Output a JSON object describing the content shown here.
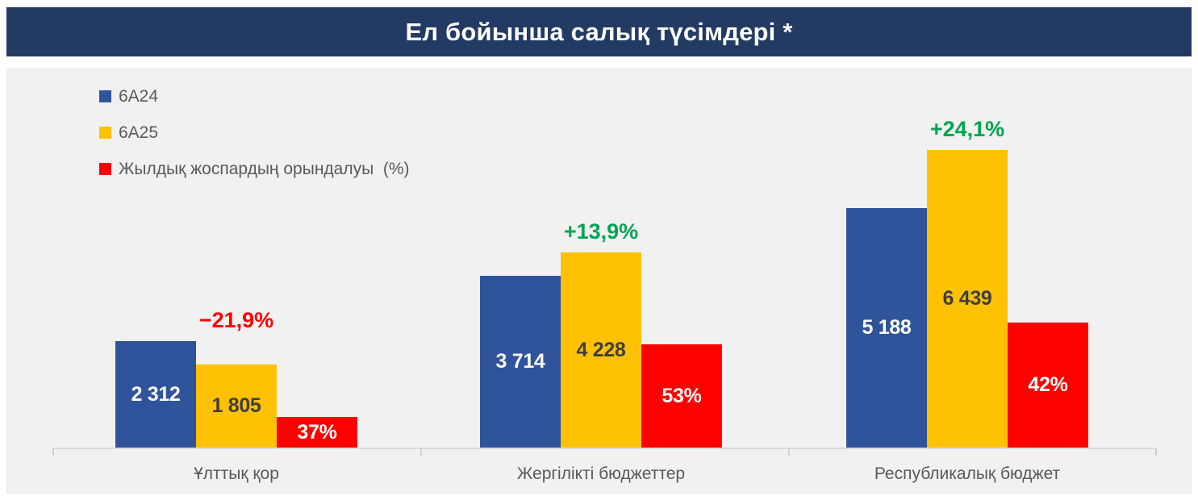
{
  "title": "Ел бойынша салық түсімдері *",
  "title_bar_color": "#233a63",
  "panel_background": "#f1f1f1",
  "legend": [
    {
      "label": "6А24",
      "color": "#30549b"
    },
    {
      "label": "6А25",
      "color": "#ffc103"
    },
    {
      "label": "Жылдық жоспардың орындалуы  (%)",
      "color": "#fd0000"
    }
  ],
  "chart_data": {
    "type": "bar",
    "title": "Ел бойынша салық түсімдері *",
    "categories": [
      "Ұлттық қор",
      "Жергілікті бюджеттер",
      "Республикалық бюджет"
    ],
    "series": [
      {
        "name": "6А24",
        "color": "#30549b",
        "label_color": "#ffffff",
        "values": [
          2312,
          3714,
          5188
        ],
        "labels": [
          "2 312",
          "3 714",
          "5 188"
        ]
      },
      {
        "name": "6А25",
        "color": "#ffc103",
        "label_color": "#3f3f3f",
        "values": [
          1805,
          4228,
          6439
        ],
        "labels": [
          "1 805",
          "4 228",
          "6 439"
        ]
      },
      {
        "name": "Жылдық жоспардың орындалуы (%)",
        "color": "#fd0000",
        "label_color": "#ffffff",
        "percent_values": [
          37,
          53,
          42
        ],
        "labels": [
          "37%",
          "53%",
          "42%"
        ]
      }
    ],
    "delta_labels": [
      {
        "text": "−21,9%",
        "color": "#fd0000"
      },
      {
        "text": "+13,9%",
        "color": "#00a551"
      },
      {
        "text": "+24,1%",
        "color": "#00a551"
      }
    ],
    "value_axis_max": 6439,
    "grid": false,
    "value_axis_visible": false,
    "legend_position": "top-left"
  }
}
